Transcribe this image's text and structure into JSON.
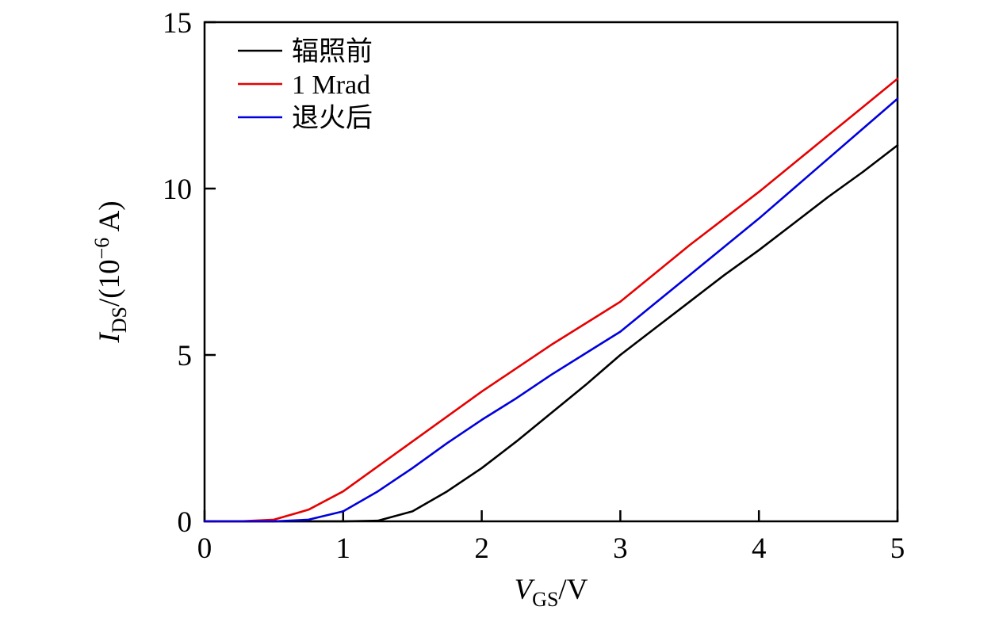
{
  "chart_data": {
    "type": "line",
    "title": "",
    "xlabel_parts": {
      "var": "V",
      "sub": "GS",
      "rest": "/V"
    },
    "ylabel_parts": {
      "var": "I",
      "sub": "DS",
      "mid": "/(10",
      "sup": "−6",
      "rest": " A)"
    },
    "xlim": [
      0,
      5
    ],
    "ylim": [
      0,
      15
    ],
    "x_ticks": [
      0,
      1,
      2,
      3,
      4,
      5
    ],
    "x_tick_labels": [
      "0",
      "1",
      "2",
      "3",
      "4",
      "5"
    ],
    "y_ticks": [
      0,
      5,
      10,
      15
    ],
    "y_tick_labels": [
      "0",
      "5",
      "10",
      "15"
    ],
    "grid": false,
    "legend_position": "top-left",
    "x": [
      0,
      0.25,
      0.5,
      0.75,
      1.0,
      1.25,
      1.5,
      1.75,
      2.0,
      2.25,
      2.5,
      2.75,
      3.0,
      3.25,
      3.5,
      3.75,
      4.0,
      4.25,
      4.5,
      4.75,
      5.0
    ],
    "series": [
      {
        "name": "辐照前",
        "key": "pre-irradiation",
        "color": "#000000",
        "values": [
          0,
          0,
          0,
          0,
          0,
          0.02,
          0.3,
          0.9,
          1.6,
          2.4,
          3.25,
          4.1,
          5.0,
          5.8,
          6.6,
          7.4,
          8.15,
          8.95,
          9.75,
          10.5,
          11.3
        ]
      },
      {
        "name": "1 Mrad",
        "key": "1mrad",
        "color": "#e60000",
        "values": [
          0,
          0,
          0.05,
          0.35,
          0.9,
          1.65,
          2.4,
          3.15,
          3.9,
          4.6,
          5.3,
          5.95,
          6.6,
          7.45,
          8.3,
          9.1,
          9.9,
          10.75,
          11.6,
          12.45,
          13.3
        ]
      },
      {
        "name": "退火后",
        "key": "post-anneal",
        "color": "#0000dd",
        "values": [
          0,
          0,
          0,
          0.05,
          0.3,
          0.9,
          1.6,
          2.35,
          3.05,
          3.7,
          4.4,
          5.05,
          5.7,
          6.55,
          7.4,
          8.25,
          9.1,
          10.0,
          10.9,
          11.8,
          12.7
        ]
      }
    ]
  }
}
